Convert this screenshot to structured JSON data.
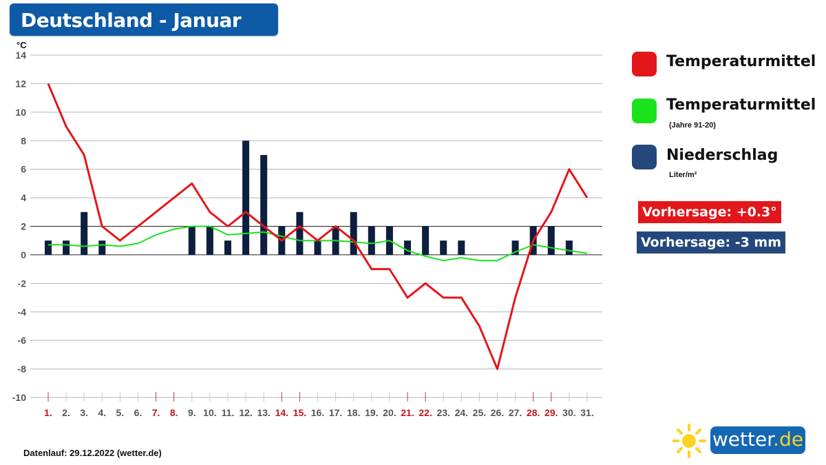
{
  "title": "Deutschland - Januar",
  "legend": [
    {
      "label": "Temperaturmittel",
      "sub": "",
      "color": "#e3161b"
    },
    {
      "label": "Temperaturmittel",
      "sub": "(Jahre 91-20)",
      "color": "#19e21d"
    },
    {
      "label": "Niederschlag",
      "sub": "Liter/m²",
      "color": "#24487c"
    }
  ],
  "forecast": {
    "temperature": "Vorhersage: +0.3°",
    "precipitation": "Vorhersage: -3 mm",
    "temperature_color": "#e3161b",
    "precipitation_color": "#24487c"
  },
  "footer": "Datenlauf: 29.12.2022 (wetter.de)",
  "logo": {
    "name": "wetter",
    "tld": ".de"
  },
  "chart_data": {
    "type": "bar+line",
    "y_unit": "°C",
    "ylim": [
      -10,
      14
    ],
    "yticks": [
      14,
      12,
      10,
      8,
      6,
      4,
      2,
      0,
      -2,
      -4,
      -6,
      -8,
      -10
    ],
    "grid": true,
    "categories": [
      "1.",
      "2.",
      "3.",
      "4.",
      "5.",
      "6.",
      "7.",
      "8.",
      "9.",
      "10.",
      "11.",
      "12.",
      "13.",
      "14.",
      "15.",
      "16.",
      "17.",
      "18.",
      "19.",
      "20.",
      "21.",
      "22.",
      "23.",
      "24.",
      "25.",
      "26.",
      "27.",
      "28.",
      "29.",
      "30.",
      "31."
    ],
    "weekend_days": [
      "1.",
      "7.",
      "8.",
      "14.",
      "15.",
      "21.",
      "22.",
      "28.",
      "29."
    ],
    "series": [
      {
        "name": "Temperaturmittel",
        "type": "line",
        "color": "#e3161b",
        "values": [
          12,
          9,
          7,
          2,
          1,
          2,
          3,
          4,
          5,
          3,
          2,
          3,
          2,
          1,
          2,
          1,
          2,
          1,
          -1,
          -1,
          -3,
          -2,
          -3,
          -3,
          -5,
          -8,
          -3,
          1,
          3,
          6,
          4
        ]
      },
      {
        "name": "Temperaturmittel (Jahre 91-20)",
        "type": "line",
        "color": "#19e21d",
        "values": [
          0.7,
          0.7,
          0.6,
          0.7,
          0.6,
          0.8,
          1.4,
          1.8,
          2.0,
          2.0,
          1.4,
          1.5,
          1.6,
          1.3,
          1.0,
          1.0,
          1.0,
          0.9,
          0.8,
          1.0,
          0.3,
          -0.1,
          -0.4,
          -0.2,
          -0.4,
          -0.4,
          0.2,
          0.7,
          0.5,
          0.3,
          0.1
        ]
      },
      {
        "name": "Niederschlag",
        "type": "bar",
        "color": "#0d1f3f",
        "values": [
          1,
          1,
          3,
          1,
          0,
          0,
          0,
          0,
          2,
          2,
          1,
          8,
          7,
          2,
          3,
          1,
          2,
          3,
          2,
          2,
          1,
          2,
          1,
          1,
          0,
          0,
          1,
          2,
          2,
          1,
          0
        ]
      }
    ]
  }
}
